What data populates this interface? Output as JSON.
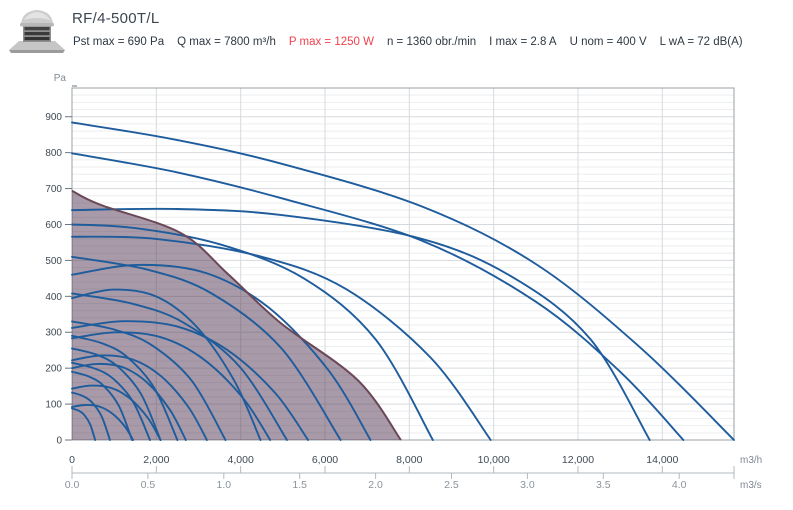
{
  "header": {
    "title": "RF/4-500T/L",
    "specs": [
      {
        "text": "Pst max = 690 Pa"
      },
      {
        "text": "Q max = 7800 m³/h"
      },
      {
        "text": "P max = 1250 W",
        "highlight": true
      },
      {
        "text": "n = 1360 obr./min"
      },
      {
        "text": "I max = 2.8 A"
      },
      {
        "text": "U nom = 400 V"
      },
      {
        "text": "L wA = 72 dB(A)"
      }
    ]
  },
  "colors": {
    "p_max_red": "#f0414d",
    "curve_blue": "#1e5c9c",
    "area_fill": "#513551",
    "area_stroke": "#6b4758",
    "grid_major": "#d7dadd",
    "grid_minor": "#eceeef",
    "axis_line": "#9aa0a6",
    "ruler_line": "#b3b9bf",
    "tick_text_dark": "#3f4a54",
    "tick_text_light": "#8b949c",
    "unit_text": "#7f8a95"
  },
  "chart_data": {
    "type": "line",
    "title": "",
    "xlabel": "m3/h",
    "x2label": "m3/s",
    "ylabel": "Pa",
    "x_axis": {
      "min": 0,
      "max": 15700,
      "ticks": [
        {
          "value": 0,
          "label": "0"
        },
        {
          "value": 2000,
          "label": "2,000"
        },
        {
          "value": 4000,
          "label": "4,000"
        },
        {
          "value": 6000,
          "label": "6,000"
        },
        {
          "value": 8000,
          "label": "8,000"
        },
        {
          "value": 10000,
          "label": "10,000"
        },
        {
          "value": 12000,
          "label": "12,000"
        },
        {
          "value": 14000,
          "label": "14,000"
        }
      ]
    },
    "x2_axis": {
      "min": 0,
      "max": 4.36,
      "unit_to_primary": 3600,
      "ticks": [
        {
          "value": 0.0,
          "label": "0.0"
        },
        {
          "value": 0.5,
          "label": "0.5"
        },
        {
          "value": 1.0,
          "label": "1.0"
        },
        {
          "value": 1.5,
          "label": "1.5"
        },
        {
          "value": 2.0,
          "label": "2.0"
        },
        {
          "value": 2.5,
          "label": "2.5"
        },
        {
          "value": 3.0,
          "label": "3.0"
        },
        {
          "value": 3.5,
          "label": "3.5"
        },
        {
          "value": 4.0,
          "label": "4.0"
        }
      ]
    },
    "y_axis": {
      "min": 0,
      "max": 980,
      "major_ticks": [
        0,
        100,
        200,
        300,
        400,
        500,
        600,
        700,
        800,
        900
      ],
      "minor_step": 20,
      "major_step": 100
    },
    "grid": {
      "vertical_step": 2000,
      "show_minor_horizontal": true
    },
    "working_area": {
      "note": "operating range of RF/4-500T/L, Pst max 690 Pa, Q max 7800 m3/h",
      "boundary_points": [
        [
          0,
          694
        ],
        [
          666,
          655
        ],
        [
          2567,
          577
        ],
        [
          3700,
          462
        ],
        [
          4944,
          326
        ],
        [
          6774,
          167
        ],
        [
          7800,
          0
        ]
      ],
      "opacity": 0.5
    },
    "curves": [
      {
        "name": "series-curve-885",
        "points": [
          [
            0,
            884
          ],
          [
            2500,
            835
          ],
          [
            5000,
            768
          ],
          [
            8300,
            650
          ],
          [
            11000,
            490
          ],
          [
            13500,
            255
          ],
          [
            15700,
            0
          ]
        ]
      },
      {
        "name": "series-curve-800",
        "points": [
          [
            0,
            798
          ],
          [
            2500,
            745
          ],
          [
            5000,
            672
          ],
          [
            8300,
            555
          ],
          [
            11000,
            385
          ],
          [
            13000,
            190
          ],
          [
            14500,
            0
          ]
        ]
      },
      {
        "name": "series-curve-640",
        "points": [
          [
            0,
            640
          ],
          [
            2500,
            643
          ],
          [
            5000,
            626
          ],
          [
            8300,
            560
          ],
          [
            10500,
            450
          ],
          [
            12300,
            280
          ],
          [
            13700,
            0
          ]
        ]
      },
      {
        "name": "series-curve-600",
        "points": [
          [
            0,
            600
          ],
          [
            1500,
            590
          ],
          [
            3500,
            545
          ],
          [
            5500,
            450
          ],
          [
            7200,
            280
          ],
          [
            8560,
            0
          ]
        ]
      },
      {
        "name": "series-curve-566",
        "points": [
          [
            0,
            566
          ],
          [
            2000,
            560
          ],
          [
            4500,
            510
          ],
          [
            6500,
            420
          ],
          [
            8500,
            230
          ],
          [
            9930,
            0
          ]
        ]
      },
      {
        "name": "series-curve-510",
        "p0": 510,
        "q0": 6370,
        "shape": "sag"
      },
      {
        "name": "series-curve-460",
        "p0": 460,
        "q0": 7080,
        "shape": "hump"
      },
      {
        "name": "series-curve-408",
        "p0": 408,
        "q0": 5100,
        "shape": "sag"
      },
      {
        "name": "series-curve-395",
        "p0": 395,
        "q0": 4470,
        "shape": "hump"
      },
      {
        "name": "series-curve-330",
        "p0": 330,
        "q0": 3640,
        "shape": "sag"
      },
      {
        "name": "series-curve-312",
        "p0": 312,
        "q0": 5600,
        "shape": "hump"
      },
      {
        "name": "series-curve-290",
        "p0": 290,
        "q0": 2500,
        "shape": "sag"
      },
      {
        "name": "series-curve-283",
        "p0": 283,
        "q0": 4700,
        "shape": "hump"
      },
      {
        "name": "series-curve-255",
        "p0": 255,
        "q0": 2100,
        "shape": "sag"
      },
      {
        "name": "series-curve-222",
        "p0": 222,
        "q0": 3200,
        "shape": "hump"
      },
      {
        "name": "series-curve-215",
        "p0": 215,
        "q0": 1850,
        "shape": "sag"
      },
      {
        "name": "series-curve-200",
        "p0": 200,
        "q0": 2700,
        "shape": "hump"
      },
      {
        "name": "series-curve-190",
        "p0": 190,
        "q0": 1425,
        "shape": "sag"
      },
      {
        "name": "series-curve-143",
        "p0": 143,
        "q0": 2100,
        "shape": "hump"
      },
      {
        "name": "series-curve-132",
        "p0": 132,
        "q0": 900,
        "shape": "sag"
      },
      {
        "name": "series-curve-092",
        "p0": 92,
        "q0": 1450,
        "shape": "hump"
      },
      {
        "name": "series-curve-088",
        "p0": 88,
        "q0": 550,
        "shape": "sag"
      }
    ],
    "legend": {
      "show": false
    }
  }
}
